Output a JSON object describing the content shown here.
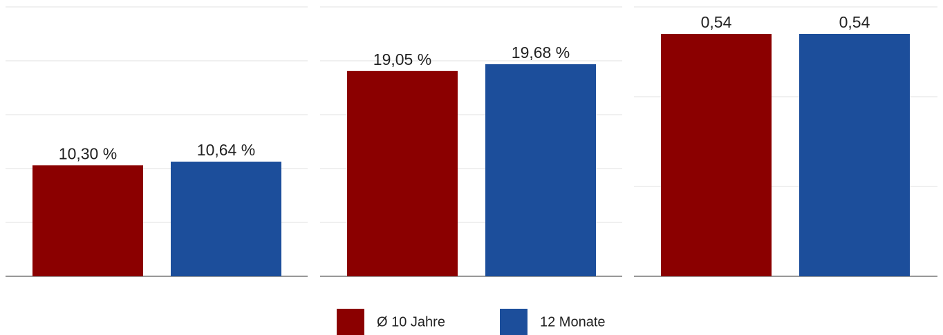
{
  "chart_data": [
    {
      "type": "bar",
      "values": [
        10.3,
        10.64
      ],
      "value_labels": [
        "10,30 %",
        "10,64 %"
      ],
      "ylim": [
        0,
        25
      ],
      "yticks": [
        0,
        5,
        10,
        15,
        20,
        25
      ],
      "grid": true
    },
    {
      "type": "bar",
      "values": [
        19.05,
        19.68
      ],
      "value_labels": [
        "19,05 %",
        "19,68 %"
      ],
      "ylim": [
        0,
        25
      ],
      "yticks": [
        0,
        5,
        10,
        15,
        20,
        25
      ],
      "grid": true
    },
    {
      "type": "bar",
      "values": [
        0.54,
        0.54
      ],
      "value_labels": [
        "0,54",
        "0,54"
      ],
      "ylim": [
        0,
        0.6
      ],
      "yticks": [
        0,
        0.2,
        0.4,
        0.6
      ],
      "grid": true
    }
  ],
  "legend": [
    {
      "name": "Ø 10 Jahre",
      "color": "#8b0000"
    },
    {
      "name": "12 Monate",
      "color": "#1c4e9b"
    }
  ]
}
